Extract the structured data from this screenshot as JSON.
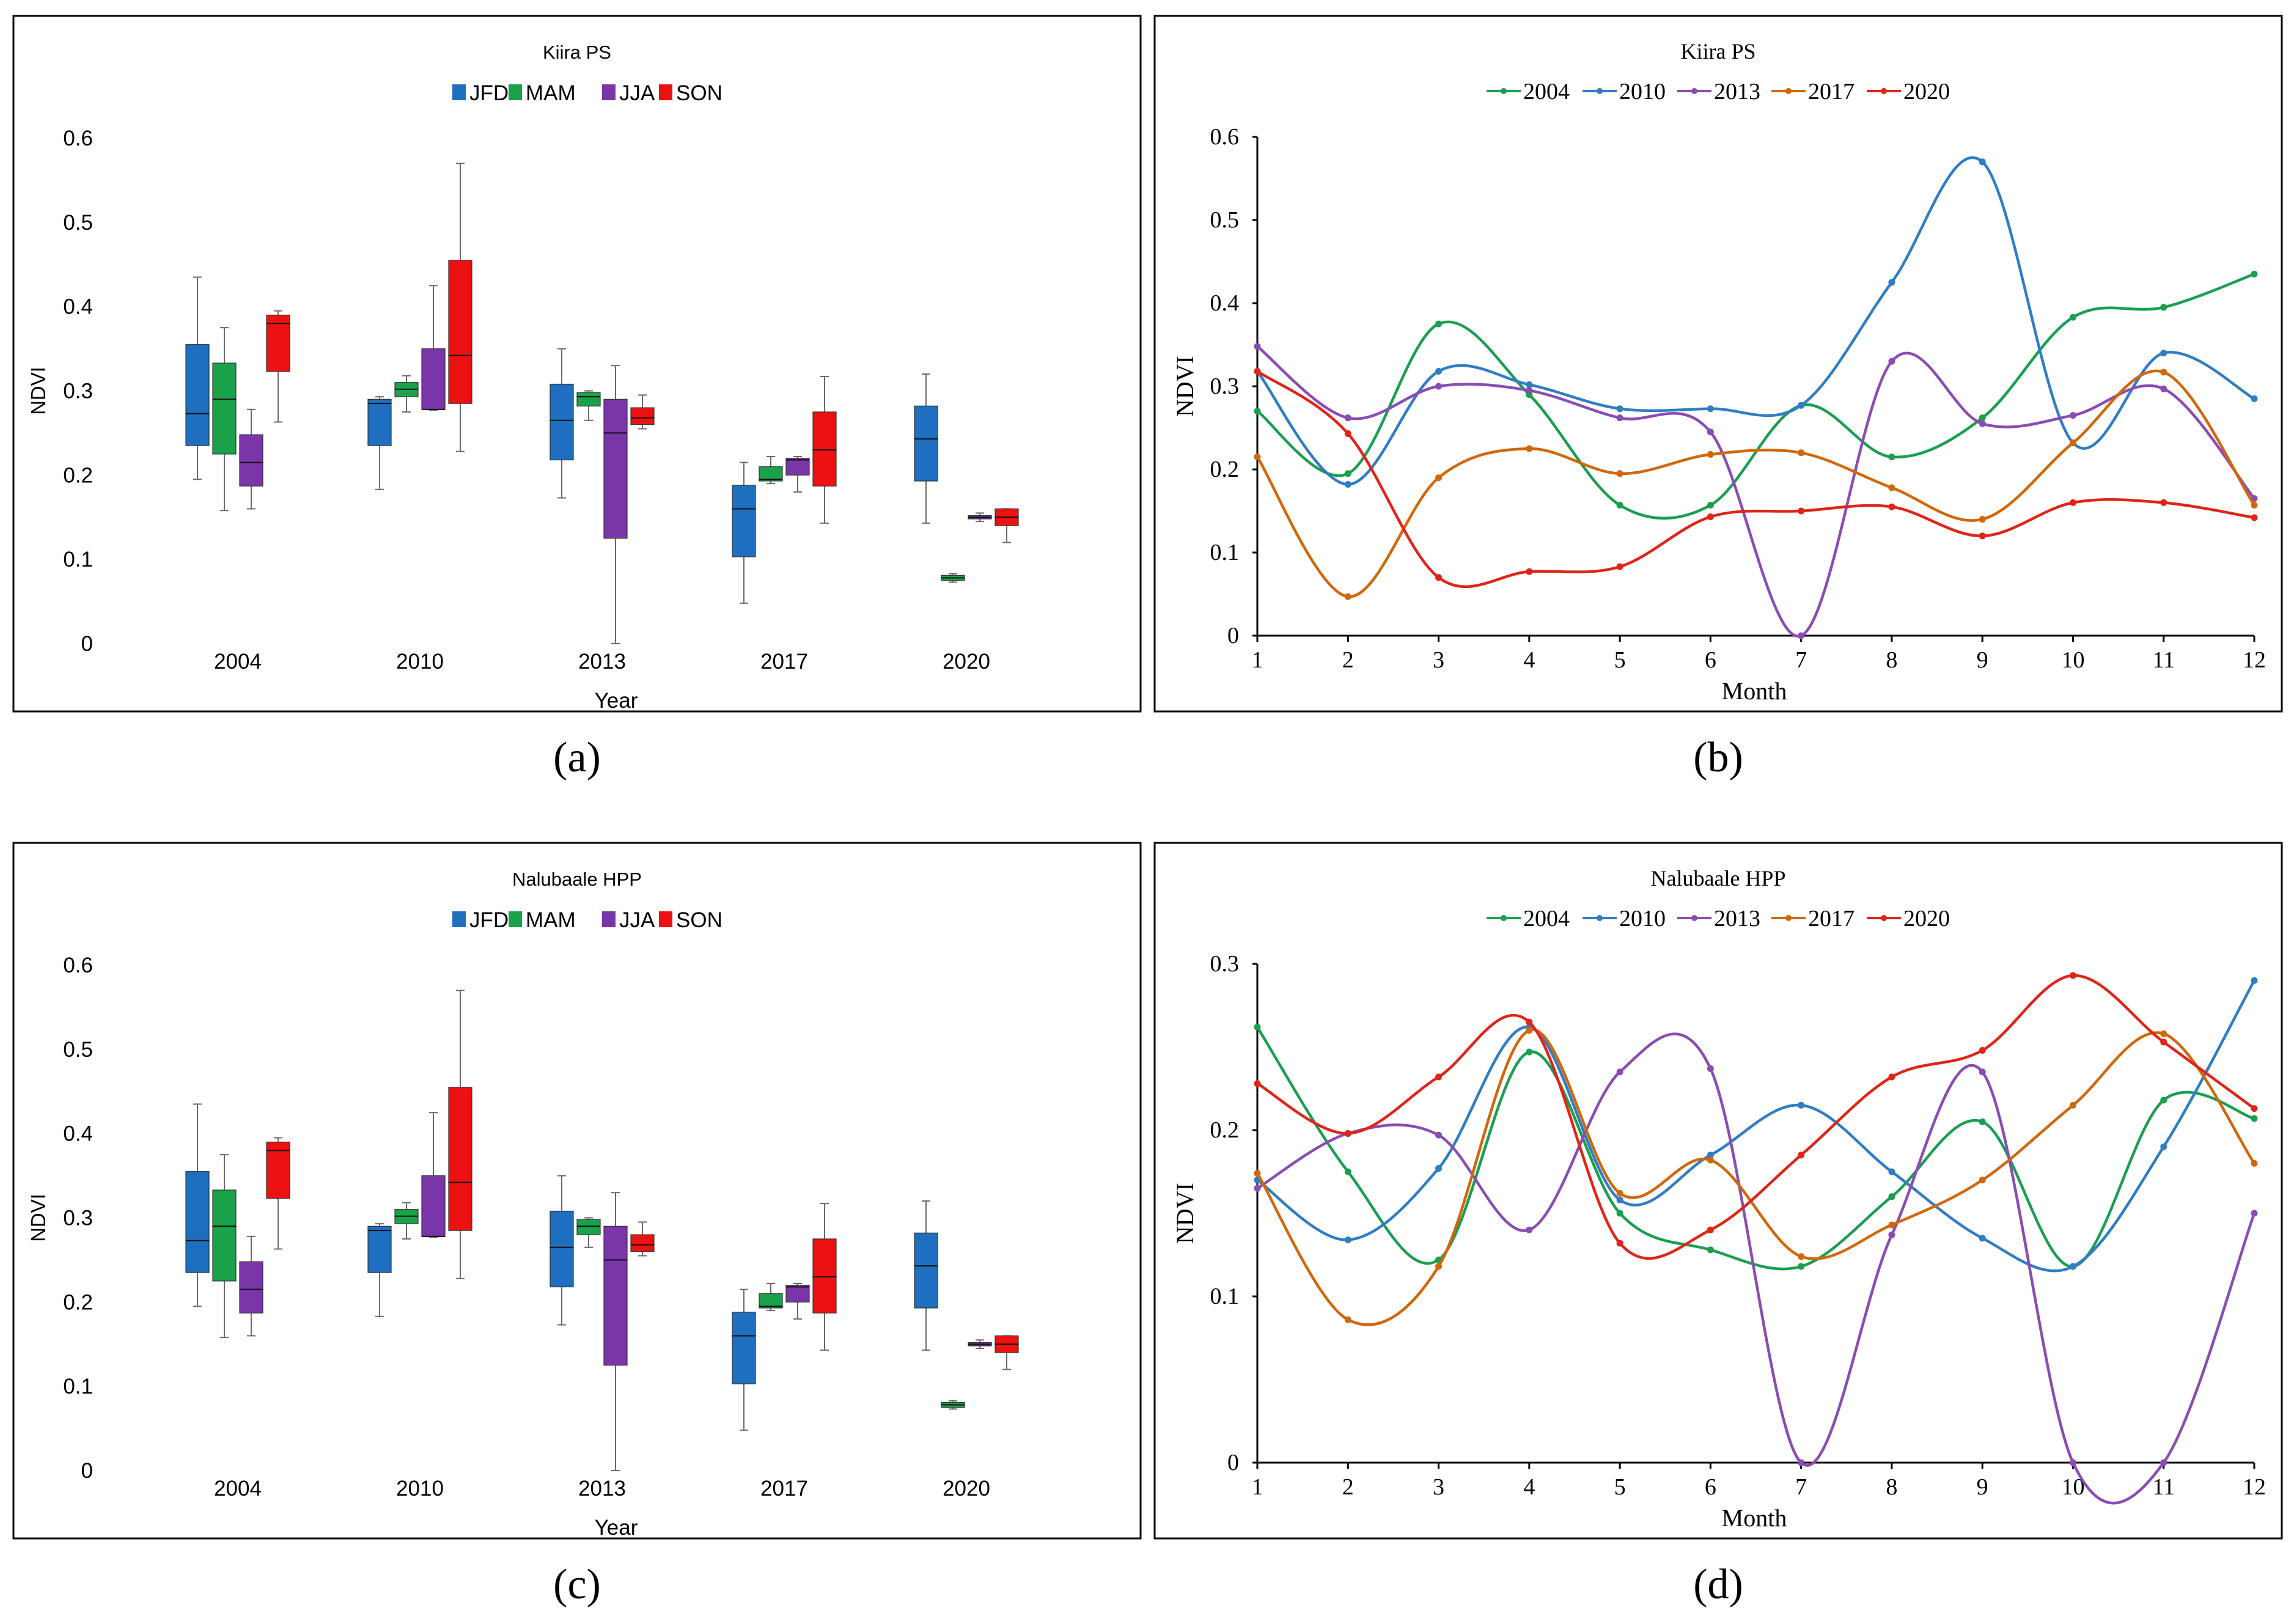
{
  "figure": {
    "panel_labels": [
      "(a)",
      "(b)",
      "(c)",
      "(d)"
    ]
  },
  "colors": {
    "JFD": "#1f6fc0",
    "MAM": "#1aa24a",
    "JJA": "#7a35a8",
    "SON": "#ee1111",
    "s2004": "#1a9e50",
    "s2010": "#2f7dc4",
    "s2013": "#8a4cb3",
    "s2017": "#d1670a",
    "s2020": "#e02418"
  },
  "chart_data": [
    {
      "id": "a",
      "type": "box",
      "title": "Kiira PS",
      "xlabel": "Year",
      "ylabel": "NDVI",
      "ylim": [
        0,
        0.6
      ],
      "yticks": [
        "0",
        "0.1",
        "0.2",
        "0.3",
        "0.4",
        "0.5",
        "0.6"
      ],
      "categories": [
        "2004",
        "2010",
        "2013",
        "2017",
        "2020"
      ],
      "legend": [
        "JFD",
        "MAM",
        "JJA",
        "SON"
      ],
      "series": [
        {
          "name": "JFD",
          "boxes": [
            {
              "min": 0.195,
              "q1": 0.235,
              "median": 0.273,
              "q3": 0.355,
              "max": 0.435
            },
            {
              "min": 0.183,
              "q1": 0.235,
              "median": 0.285,
              "q3": 0.29,
              "max": 0.293
            },
            {
              "min": 0.173,
              "q1": 0.218,
              "median": 0.265,
              "q3": 0.308,
              "max": 0.35
            },
            {
              "min": 0.048,
              "q1": 0.103,
              "median": 0.16,
              "q3": 0.188,
              "max": 0.215
            },
            {
              "min": 0.143,
              "q1": 0.193,
              "median": 0.243,
              "q3": 0.282,
              "max": 0.32
            }
          ]
        },
        {
          "name": "MAM",
          "boxes": [
            {
              "min": 0.158,
              "q1": 0.225,
              "median": 0.29,
              "q3": 0.333,
              "max": 0.375
            },
            {
              "min": 0.275,
              "q1": 0.293,
              "median": 0.302,
              "q3": 0.31,
              "max": 0.318
            },
            {
              "min": 0.265,
              "q1": 0.282,
              "median": 0.293,
              "q3": 0.298,
              "max": 0.3
            },
            {
              "min": 0.19,
              "q1": 0.193,
              "median": 0.195,
              "q3": 0.21,
              "max": 0.222
            },
            {
              "min": 0.073,
              "q1": 0.075,
              "median": 0.078,
              "q3": 0.081,
              "max": 0.083
            }
          ]
        },
        {
          "name": "JJA",
          "boxes": [
            {
              "min": 0.16,
              "q1": 0.187,
              "median": 0.215,
              "q3": 0.248,
              "max": 0.278
            },
            {
              "min": 0.277,
              "q1": 0.278,
              "median": 0.278,
              "q3": 0.35,
              "max": 0.425
            },
            {
              "min": 0.0,
              "q1": 0.125,
              "median": 0.25,
              "q3": 0.29,
              "max": 0.33
            },
            {
              "min": 0.18,
              "q1": 0.2,
              "median": 0.218,
              "q3": 0.22,
              "max": 0.222
            },
            {
              "min": 0.145,
              "q1": 0.148,
              "median": 0.15,
              "q3": 0.152,
              "max": 0.155
            }
          ]
        },
        {
          "name": "SON",
          "boxes": [
            {
              "min": 0.263,
              "q1": 0.323,
              "median": 0.38,
              "q3": 0.39,
              "max": 0.395
            },
            {
              "min": 0.228,
              "q1": 0.285,
              "median": 0.342,
              "q3": 0.455,
              "max": 0.57
            },
            {
              "min": 0.255,
              "q1": 0.26,
              "median": 0.268,
              "q3": 0.28,
              "max": 0.295
            },
            {
              "min": 0.143,
              "q1": 0.187,
              "median": 0.23,
              "q3": 0.275,
              "max": 0.317
            },
            {
              "min": 0.12,
              "q1": 0.14,
              "median": 0.15,
              "q3": 0.16,
              "max": 0.16
            }
          ]
        }
      ]
    },
    {
      "id": "b",
      "type": "line",
      "title": "Kiira PS",
      "xlabel": "Month",
      "ylabel": "NDVI",
      "ylim": [
        0,
        0.6
      ],
      "yticks": [
        "0",
        "0.1",
        "0.2",
        "0.3",
        "0.4",
        "0.5",
        "0.6"
      ],
      "x": [
        1,
        2,
        3,
        4,
        5,
        6,
        7,
        8,
        9,
        10,
        11,
        12
      ],
      "legend": [
        "2004",
        "2010",
        "2013",
        "2017",
        "2020"
      ],
      "series": [
        {
          "name": "2004",
          "values": [
            0.27,
            0.195,
            0.375,
            0.29,
            0.157,
            0.157,
            0.277,
            0.215,
            0.262,
            0.383,
            0.395,
            0.435
          ]
        },
        {
          "name": "2010",
          "values": [
            0.318,
            0.182,
            0.318,
            0.302,
            0.273,
            0.273,
            0.277,
            0.425,
            0.57,
            0.232,
            0.34,
            0.285
          ]
        },
        {
          "name": "2013",
          "values": [
            0.348,
            0.262,
            0.3,
            0.295,
            0.262,
            0.245,
            0.0,
            0.33,
            0.255,
            0.265,
            0.297,
            0.165
          ]
        },
        {
          "name": "2017",
          "values": [
            0.215,
            0.047,
            0.19,
            0.225,
            0.195,
            0.218,
            0.22,
            0.178,
            0.14,
            0.232,
            0.317,
            0.157
          ]
        },
        {
          "name": "2020",
          "values": [
            0.318,
            0.243,
            0.07,
            0.077,
            0.083,
            0.143,
            0.15,
            0.155,
            0.12,
            0.16,
            0.16,
            0.142
          ]
        }
      ]
    },
    {
      "id": "c",
      "type": "box",
      "title": "Nalubaale HPP",
      "xlabel": "Year",
      "ylabel": "NDVI",
      "ylim": [
        0,
        0.6
      ],
      "yticks": [
        "0",
        "0.1",
        "0.2",
        "0.3",
        "0.4",
        "0.5",
        "0.6"
      ],
      "categories": [
        "2004",
        "2010",
        "2013",
        "2017",
        "2020"
      ],
      "legend": [
        "JFD",
        "MAM",
        "JJA",
        "SON"
      ],
      "series": [
        {
          "name": "JFD",
          "boxes": [
            {
              "min": 0.195,
              "q1": 0.235,
              "median": 0.273,
              "q3": 0.355,
              "max": 0.435
            },
            {
              "min": 0.183,
              "q1": 0.235,
              "median": 0.285,
              "q3": 0.29,
              "max": 0.293
            },
            {
              "min": 0.173,
              "q1": 0.218,
              "median": 0.265,
              "q3": 0.308,
              "max": 0.35
            },
            {
              "min": 0.048,
              "q1": 0.103,
              "median": 0.16,
              "q3": 0.188,
              "max": 0.215
            },
            {
              "min": 0.143,
              "q1": 0.193,
              "median": 0.243,
              "q3": 0.282,
              "max": 0.32
            }
          ]
        },
        {
          "name": "MAM",
          "boxes": [
            {
              "min": 0.158,
              "q1": 0.225,
              "median": 0.29,
              "q3": 0.333,
              "max": 0.375
            },
            {
              "min": 0.275,
              "q1": 0.293,
              "median": 0.302,
              "q3": 0.31,
              "max": 0.318
            },
            {
              "min": 0.265,
              "q1": 0.28,
              "median": 0.29,
              "q3": 0.298,
              "max": 0.3
            },
            {
              "min": 0.19,
              "q1": 0.193,
              "median": 0.195,
              "q3": 0.21,
              "max": 0.222
            },
            {
              "min": 0.073,
              "q1": 0.075,
              "median": 0.078,
              "q3": 0.081,
              "max": 0.083
            }
          ]
        },
        {
          "name": "JJA",
          "boxes": [
            {
              "min": 0.16,
              "q1": 0.187,
              "median": 0.215,
              "q3": 0.248,
              "max": 0.278
            },
            {
              "min": 0.277,
              "q1": 0.278,
              "median": 0.278,
              "q3": 0.35,
              "max": 0.425
            },
            {
              "min": 0.0,
              "q1": 0.125,
              "median": 0.25,
              "q3": 0.29,
              "max": 0.33
            },
            {
              "min": 0.18,
              "q1": 0.2,
              "median": 0.218,
              "q3": 0.22,
              "max": 0.222
            },
            {
              "min": 0.145,
              "q1": 0.148,
              "median": 0.15,
              "q3": 0.152,
              "max": 0.155
            }
          ]
        },
        {
          "name": "SON",
          "boxes": [
            {
              "min": 0.263,
              "q1": 0.323,
              "median": 0.38,
              "q3": 0.39,
              "max": 0.395
            },
            {
              "min": 0.228,
              "q1": 0.285,
              "median": 0.342,
              "q3": 0.455,
              "max": 0.57
            },
            {
              "min": 0.255,
              "q1": 0.26,
              "median": 0.268,
              "q3": 0.28,
              "max": 0.295
            },
            {
              "min": 0.143,
              "q1": 0.187,
              "median": 0.23,
              "q3": 0.275,
              "max": 0.317
            },
            {
              "min": 0.12,
              "q1": 0.14,
              "median": 0.15,
              "q3": 0.16,
              "max": 0.16
            }
          ]
        }
      ]
    },
    {
      "id": "d",
      "type": "line",
      "title": "Nalubaale HPP",
      "xlabel": "Month",
      "ylabel": "NDVI",
      "ylim": [
        0,
        0.3
      ],
      "yticks": [
        "0",
        "0.1",
        "0.2",
        "0.3"
      ],
      "x": [
        1,
        2,
        3,
        4,
        5,
        6,
        7,
        8,
        9,
        10,
        11,
        12
      ],
      "legend": [
        "2004",
        "2010",
        "2013",
        "2017",
        "2020"
      ],
      "series": [
        {
          "name": "2004",
          "values": [
            0.262,
            0.175,
            0.122,
            0.247,
            0.15,
            0.128,
            0.118,
            0.16,
            0.205,
            0.118,
            0.218,
            0.207
          ]
        },
        {
          "name": "2010",
          "values": [
            0.17,
            0.134,
            0.177,
            0.262,
            0.158,
            0.185,
            0.215,
            0.175,
            0.135,
            0.118,
            0.19,
            0.29
          ]
        },
        {
          "name": "2013",
          "values": [
            0.165,
            0.198,
            0.197,
            0.14,
            0.235,
            0.237,
            0.0,
            0.137,
            0.235,
            0.0,
            0.0,
            0.15
          ]
        },
        {
          "name": "2017",
          "values": [
            0.174,
            0.086,
            0.118,
            0.26,
            0.162,
            0.182,
            0.124,
            0.143,
            0.17,
            0.215,
            0.258,
            0.18
          ]
        },
        {
          "name": "2020",
          "values": [
            0.228,
            0.198,
            0.232,
            0.265,
            0.132,
            0.14,
            0.185,
            0.232,
            0.248,
            0.293,
            0.253,
            0.213
          ]
        }
      ]
    }
  ]
}
